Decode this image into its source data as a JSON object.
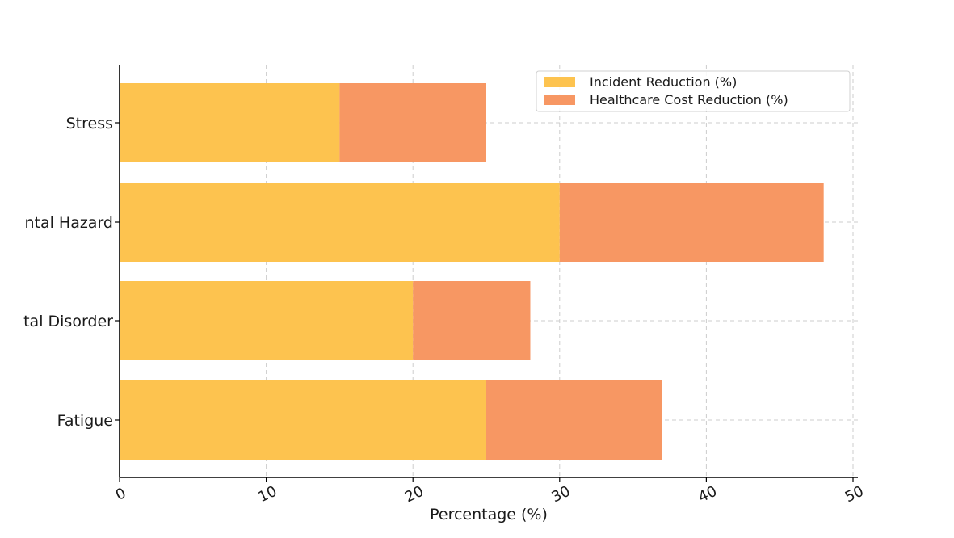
{
  "chart_data": {
    "type": "bar",
    "orientation": "horizontal",
    "stacked": true,
    "categories": [
      "Fatigue",
      "Mental Disorder",
      "Environmental Hazard",
      "Stress"
    ],
    "categories_visible_text": [
      "Fatigue",
      "tal Disorder",
      "ntal Hazard",
      "Stress"
    ],
    "series": [
      {
        "name": "Incident Reduction (%)",
        "values": [
          25,
          20,
          30,
          15
        ],
        "color": "#fdc34f"
      },
      {
        "name": "Healthcare Cost Reduction (%)",
        "values": [
          12,
          8,
          18,
          10
        ],
        "color": "#f79763"
      }
    ],
    "title": "",
    "xlabel": "Percentage (%)",
    "ylabel": "",
    "xlim": [
      0,
      50
    ],
    "xticks": [
      0,
      10,
      20,
      30,
      40,
      50
    ],
    "grid": true,
    "legend_position": "top-right"
  }
}
